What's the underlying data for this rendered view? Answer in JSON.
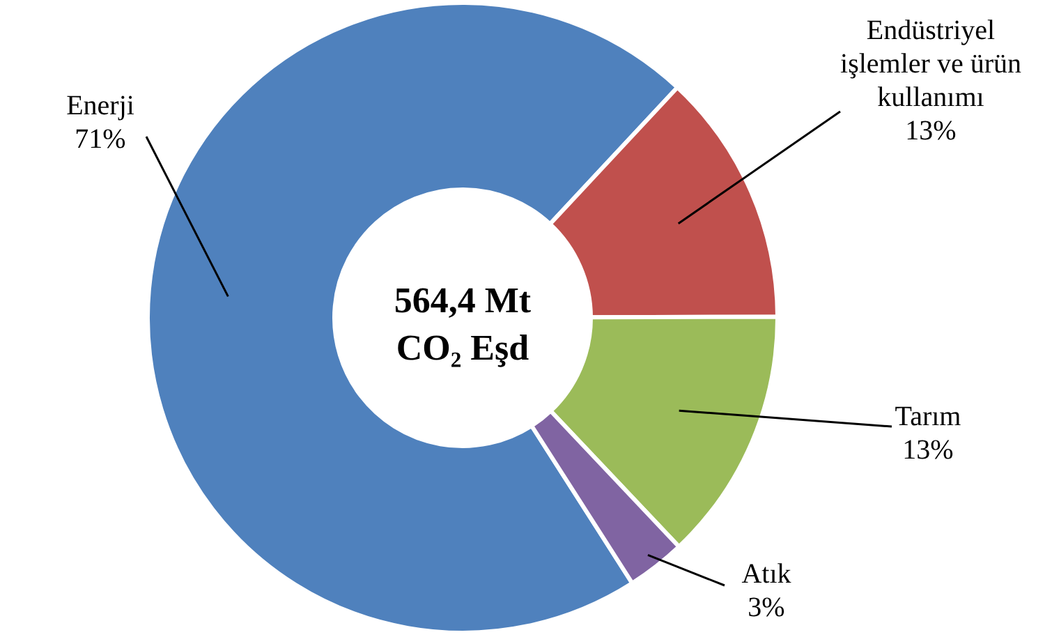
{
  "chart_data": {
    "type": "donut",
    "categories": [
      "Enerji",
      "Endüstriyel işlemler ve ürün kullanımı",
      "Tarım",
      "Atık"
    ],
    "values": [
      71,
      13,
      13,
      3
    ],
    "colors": [
      "#4f81bd",
      "#c0504d",
      "#9bbb59",
      "#8064a2"
    ],
    "value_labels": [
      "71%",
      "13%",
      "13%",
      "3%"
    ],
    "annotations": [
      "564,4 Mt",
      "CO₂ Eşd"
    ]
  }
}
